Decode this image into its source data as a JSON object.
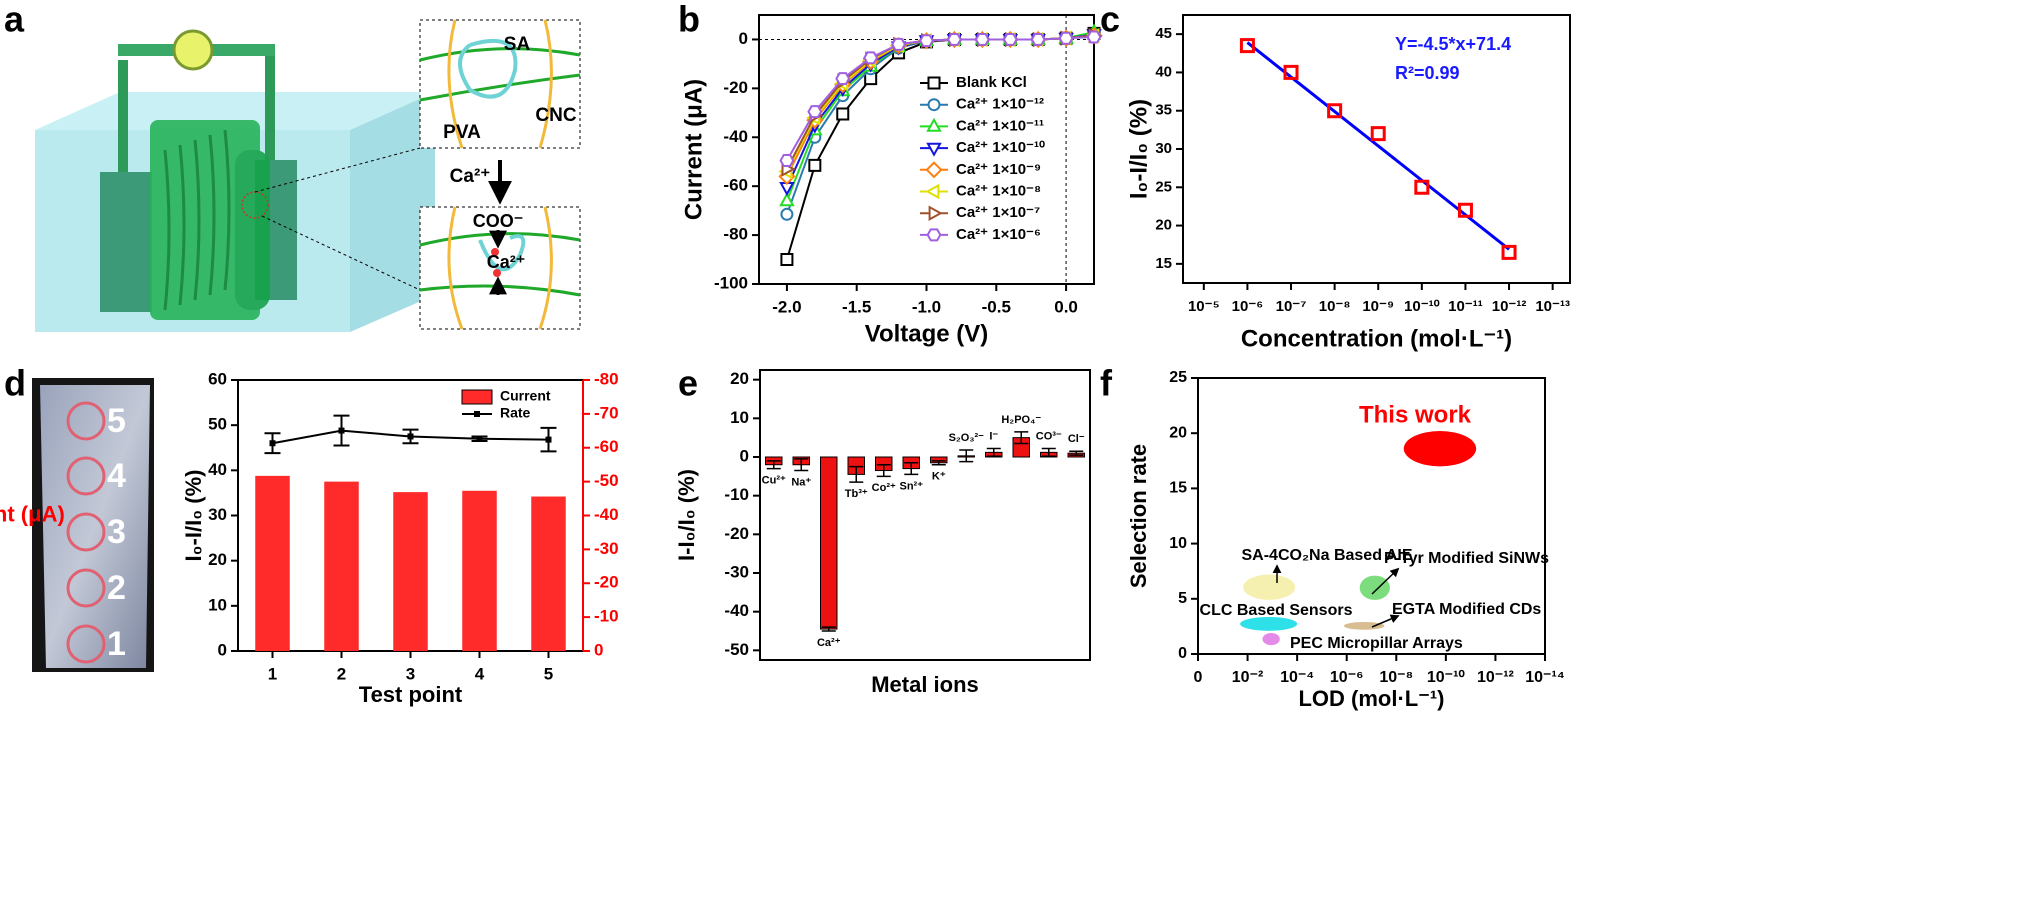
{
  "panel_labels": [
    "a",
    "b",
    "c",
    "d",
    "e",
    "f"
  ],
  "illustration": {
    "labels": [
      "SA",
      "PVA",
      "CNC"
    ],
    "arrow_label": "Ca²⁺",
    "bound_labels": [
      "COO⁻",
      "Ca²⁺"
    ]
  },
  "photo": {
    "point_labels": [
      "5",
      "4",
      "3",
      "2",
      "1"
    ]
  },
  "chart_data": [
    {
      "type": "line",
      "x_label": "Voltage (V)",
      "y_label": "Current (μA)",
      "x": [
        -2,
        -1.8,
        -1.6,
        -1.4,
        -1.2,
        -1,
        -0.8,
        -0.6,
        -0.4,
        -0.2,
        0,
        0.2
      ],
      "xlim": [
        -2.2,
        0.2
      ],
      "xticks": [
        {
          "value": -2,
          "label": "-2.0"
        },
        {
          "value": -1.5,
          "label": "-1.5"
        },
        {
          "value": -1,
          "label": "-1.0"
        },
        {
          "value": -0.5,
          "label": "-0.5"
        },
        {
          "value": 0,
          "label": "0.0"
        }
      ],
      "ylim": [
        -100,
        10
      ],
      "yticks": [
        -100,
        -80,
        -60,
        -40,
        -20,
        0
      ],
      "zero_lines": true,
      "series": [
        {
          "name": "Blank KCl",
          "color": "#000000",
          "marker": "square",
          "values": [
            -90,
            -51.5,
            -30.5,
            -16,
            -5.5,
            -1,
            0,
            0,
            0,
            0,
            0.5,
            2.5
          ]
        },
        {
          "name": "Ca²⁺ 1×10⁻¹²",
          "color": "#2a7ab0",
          "marker": "circle",
          "values": [
            -71.5,
            -40,
            -23,
            -12,
            -3.5,
            -0.5,
            0,
            0,
            0,
            0,
            0.5,
            1.5
          ]
        },
        {
          "name": "Ca²⁺ 1×10⁻¹¹",
          "color": "#22dd22",
          "marker": "triangle-up",
          "values": [
            -66,
            -37,
            -21,
            -11,
            -3,
            -0.5,
            0,
            0,
            0,
            0,
            0.5,
            3
          ]
        },
        {
          "name": "Ca²⁺ 1×10⁻¹⁰",
          "color": "#1515e0",
          "marker": "triangle-down",
          "values": [
            -60.5,
            -35,
            -20,
            -10,
            -3,
            -0.5,
            0,
            0,
            0,
            0,
            0.5,
            2
          ]
        },
        {
          "name": "Ca²⁺ 1×10⁻⁹",
          "color": "#ff7f0e",
          "marker": "diamond",
          "values": [
            -56,
            -33,
            -18.5,
            -9,
            -2.5,
            -0.5,
            0,
            0,
            0,
            0,
            0.5,
            1.5
          ]
        },
        {
          "name": "Ca²⁺ 1×10⁻⁸",
          "color": "#e0e000",
          "marker": "triangle-left",
          "values": [
            -54,
            -32,
            -18,
            -8.5,
            -2.5,
            -0.5,
            0,
            0,
            0,
            0,
            0.5,
            1.5
          ]
        },
        {
          "name": "Ca²⁺ 1×10⁻⁷",
          "color": "#a0522d",
          "marker": "triangle-right",
          "values": [
            -53,
            -31,
            -17,
            -8,
            -2,
            -0.5,
            0,
            0,
            0,
            0,
            0.5,
            1.5
          ]
        },
        {
          "name": "Ca²⁺ 1×10⁻⁶",
          "color": "#a060e0",
          "marker": "hexagon",
          "values": [
            -49.5,
            -29.5,
            -16,
            -7.5,
            -2,
            -0.5,
            0,
            0,
            0,
            0,
            0.5,
            1
          ]
        }
      ]
    },
    {
      "type": "scatter",
      "x_label": "Concentration (mol·L⁻¹)",
      "y_label": "I₀-I/I₀ (%)",
      "xscale": "log",
      "x": [
        1e-06,
        1e-07,
        1e-08,
        1e-09,
        1e-10,
        1e-11,
        1e-12
      ],
      "values": [
        43.5,
        40,
        35,
        32,
        25,
        22,
        16.5
      ],
      "color": "#ff0000",
      "marker": "square",
      "fit": {
        "x": [
          1e-06,
          1e-12
        ],
        "y": [
          43.9,
          16.9
        ],
        "color": "#0000ff"
      },
      "annotations": [
        "Y=-4.5*x+71.4",
        "R²=0.99"
      ],
      "annotation_color": "#1a1aff",
      "xlim": [
        3e-05,
        4e-14
      ],
      "xticks": [
        {
          "value": 1e-05,
          "label": "10⁻⁵"
        },
        {
          "value": 1e-06,
          "label": "10⁻⁶"
        },
        {
          "value": 1e-07,
          "label": "10⁻⁷"
        },
        {
          "value": 1e-08,
          "label": "10⁻⁸"
        },
        {
          "value": 1e-09,
          "label": "10⁻⁹"
        },
        {
          "value": 1e-10,
          "label": "10⁻¹⁰"
        },
        {
          "value": 1e-11,
          "label": "10⁻¹¹"
        },
        {
          "value": 1e-12,
          "label": "10⁻¹²"
        },
        {
          "value": 1e-13,
          "label": "10⁻¹³"
        }
      ],
      "ylim": [
        12.5,
        47.5
      ],
      "yticks": [
        15,
        20,
        25,
        30,
        35,
        40,
        45
      ]
    },
    {
      "type": "bar_line",
      "x_label": "Test point",
      "y_label": "I₀-I/I₀ (%)",
      "y2_label": "Current (μA)",
      "y2_color": "#ff0000",
      "categories": [
        "1",
        "2",
        "3",
        "4",
        "5"
      ],
      "ylim": [
        0,
        60
      ],
      "yticks": [
        0,
        10,
        20,
        30,
        40,
        50,
        60
      ],
      "y2lim": [
        0,
        -80
      ],
      "y2ticks": [
        0,
        -10,
        -20,
        -30,
        -40,
        -50,
        -60,
        -70,
        -80
      ],
      "series": [
        {
          "name": "Current",
          "type": "bar",
          "axis": "y2",
          "color": "#ff2a2a",
          "values": [
            -51.7,
            -50,
            -46.9,
            -47.3,
            -45.6
          ]
        },
        {
          "name": "Rate",
          "type": "line",
          "color": "#000000",
          "values": [
            46,
            48.8,
            47.5,
            47,
            46.8
          ],
          "errors": [
            2.2,
            3.3,
            1.5,
            0.5,
            2.6
          ]
        }
      ]
    },
    {
      "type": "bar",
      "x_label": "Metal ions",
      "y_label": "I-I₀/I₀ (%)",
      "color": "#ee1111",
      "categories": [
        "Cu²⁺",
        "Na⁺",
        "Ca²⁺",
        "Tb³⁺",
        "Co²⁺",
        "Sn²⁺",
        "K⁺",
        "S₂O₃²⁻",
        "I⁻",
        "H₂PO₄⁻",
        "CO³⁻",
        "Cl⁻"
      ],
      "values": [
        -2,
        -2,
        -44.5,
        -4.5,
        -3.5,
        -3,
        -1.5,
        0.3,
        1.2,
        5,
        1.2,
        1
      ],
      "errors": [
        1,
        1.5,
        0.5,
        2,
        1.5,
        1.5,
        0.5,
        1.5,
        1,
        1.5,
        1,
        0.5
      ],
      "ylim": [
        -52.5,
        22.5
      ],
      "yticks": [
        -50,
        -40,
        -30,
        -20,
        -10,
        0,
        10,
        20
      ]
    },
    {
      "type": "ellipse",
      "x_label": "LOD (mol·L⁻¹)",
      "y_label": "Selection rate",
      "xscale": "log",
      "xlim": [
        1,
        1e-14
      ],
      "xticks": [
        {
          "value": 1,
          "label": "0"
        },
        {
          "value": 0.01,
          "label": "10⁻²"
        },
        {
          "value": 0.0001,
          "label": "10⁻⁴"
        },
        {
          "value": 1e-06,
          "label": "10⁻⁶"
        },
        {
          "value": 1e-08,
          "label": "10⁻⁸"
        },
        {
          "value": 1e-10,
          "label": "10⁻¹⁰"
        },
        {
          "value": 1e-12,
          "label": "10⁻¹²"
        },
        {
          "value": 1e-14,
          "label": "10⁻¹⁴"
        }
      ],
      "ylim": [
        0,
        25
      ],
      "yticks": [
        0,
        5,
        10,
        15,
        20,
        25
      ],
      "series": [
        {
          "name": "This work",
          "color": "#ff0000",
          "x": [
            5e-09,
            6e-12
          ],
          "y": [
            17,
            20.2
          ]
        },
        {
          "name": "SA-4CO₂Na Based AIE",
          "color": "#f5f0b0",
          "x": [
            0.015,
            0.00012
          ],
          "y": [
            4.9,
            7.2
          ]
        },
        {
          "name": "P-Tyr Modified SiNWs",
          "color": "#7ddc7d",
          "x": [
            3e-07,
            1.8e-08
          ],
          "y": [
            4.9,
            7.1
          ]
        },
        {
          "name": "CLC Based Sensors",
          "color": "#2ee0e8",
          "x": [
            0.02,
            0.0001
          ],
          "y": [
            2.1,
            3.35
          ]
        },
        {
          "name": "EGTA Modified CDs",
          "color": "#d8bd90",
          "x": [
            1.3e-06,
            3e-08
          ],
          "y": [
            2.2,
            2.9
          ]
        },
        {
          "name": "PEC Micropillar Arrays",
          "color": "#e48ae8",
          "x": [
            0.0025,
            0.0005
          ],
          "y": [
            0.8,
            1.9
          ]
        }
      ]
    }
  ]
}
